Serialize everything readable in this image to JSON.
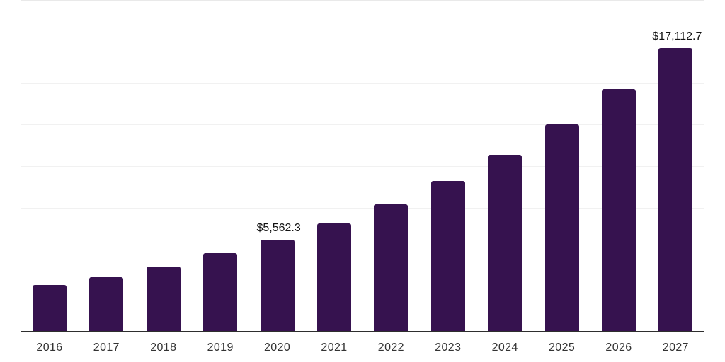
{
  "chart_data": {
    "type": "bar",
    "title": "",
    "categories": [
      "2016",
      "2017",
      "2018",
      "2019",
      "2020",
      "2021",
      "2022",
      "2023",
      "2024",
      "2025",
      "2026",
      "2027"
    ],
    "values": [
      2860,
      3330,
      3970,
      4780,
      5562.3,
      6570,
      7720,
      9090,
      10670,
      12500,
      14640,
      17112.7
    ],
    "point_labels": [
      "",
      "",
      "",
      "",
      "$5,562.3",
      "",
      "",
      "",
      "",
      "",
      "",
      "$17,112.7"
    ],
    "xlabel": "",
    "ylabel": "",
    "ylim": [
      0,
      20000
    ],
    "gridline_interval": 2500,
    "grid": "horizontal",
    "legend": "none",
    "colors": {
      "bar": "#36124f",
      "axis_line": "#2e2e2e",
      "gridline": "#f1f1f1",
      "top_gridline": "#e9e9e9",
      "data_label": "#111111",
      "tick_label": "#333333",
      "background": "#ffffff"
    }
  }
}
